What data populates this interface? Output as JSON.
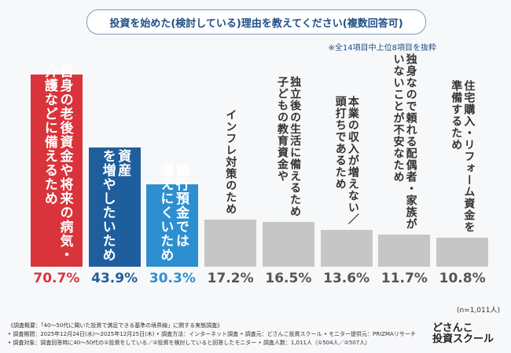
{
  "chart_data": {
    "type": "bar",
    "title": "投資を始めた(検討している)理由を教えてください(複数回答可)",
    "subtitle": "※全14項目中上位8項目を抜粋",
    "categories": [
      "自身の老後資金や将来の病気・\n介護などに備えるため",
      "資産\nを増やしたいため",
      "銀行預金では\n増えにくいため",
      "インフレ対策のため",
      "独立後の生活に備えるため\n子どもの教育資金や",
      "本業の収入が増えない／\n頭打ちであるため",
      "独身なので頼れる配偶者・家族が\nいないことが不安なため",
      "住宅購入・リフォーム資金を\n準備するため"
    ],
    "values": [
      70.7,
      43.9,
      30.3,
      17.2,
      16.5,
      13.6,
      11.7,
      10.8
    ],
    "value_labels": [
      "70.7%",
      "43.9%",
      "30.3%",
      "17.2%",
      "16.5%",
      "13.6%",
      "11.7%",
      "10.8%"
    ],
    "colors": [
      "#d9343b",
      "#1f5e9d",
      "#2e8fd0",
      "#c6c6c6",
      "#c6c6c6",
      "#c6c6c6",
      "#c6c6c6",
      "#c6c6c6"
    ],
    "sample": "(n=1,011人)",
    "notes": [
      "《調査概要：「40〜50代に聞いた投資で満足できる基準の境界線」に関する実態調査》",
      "• 調査期間：2025年12月24日(水)〜2025年12月25日(木) • 調査方法：インターネット調査 • 調査元：どさんこ投資スクール • モニター提供元：PRIZMAリサーチ",
      "• 調査対象：調査回答時に40〜50代の①投資をしている／②投資を検討していると回答したモニター • 調査人数：1,011人（①504人／②507人）"
    ],
    "logo": [
      "どさんこ",
      "投資スクール"
    ]
  }
}
